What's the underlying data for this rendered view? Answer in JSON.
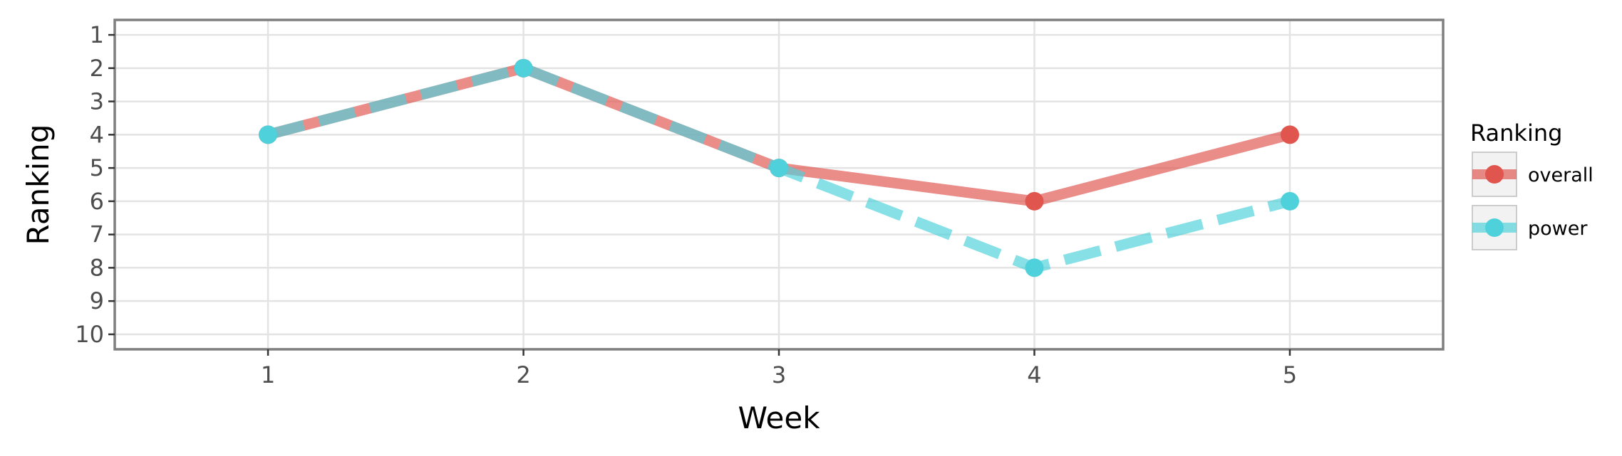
{
  "chart_data": {
    "type": "line",
    "xlabel": "Week",
    "ylabel": "Ranking",
    "x": [
      1,
      2,
      3,
      4,
      5
    ],
    "x_ticks": [
      "1",
      "2",
      "3",
      "4",
      "5"
    ],
    "xlim": [
      0.4,
      5.6
    ],
    "y_ticks": [
      "1",
      "2",
      "3",
      "4",
      "5",
      "6",
      "7",
      "8",
      "9",
      "10"
    ],
    "ylim": [
      10.45,
      0.55
    ],
    "y_reversed": true,
    "grid": true,
    "legend": {
      "title": "Ranking",
      "placement": "right"
    },
    "series": [
      {
        "name": "overall",
        "values": [
          4,
          2,
          5,
          6,
          4
        ],
        "color": "#e0564f",
        "linestyle": "solid"
      },
      {
        "name": "power",
        "values": [
          4,
          2,
          5,
          8,
          6
        ],
        "color": "#4fd1dc",
        "linestyle": "dashed"
      }
    ]
  }
}
